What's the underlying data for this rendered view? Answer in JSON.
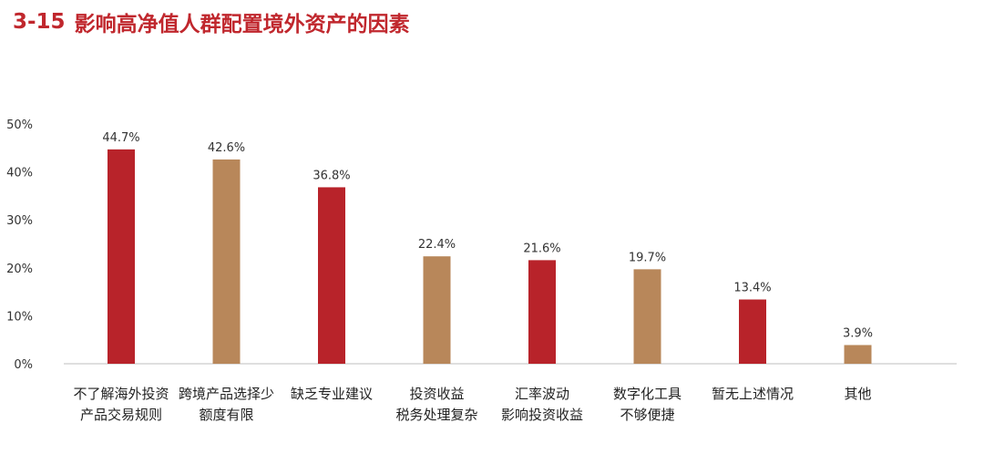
{
  "header": {
    "number": "3-15",
    "title": "影响高净值人群配置境外资产的因素"
  },
  "colors": {
    "red": "#b8232a",
    "tan": "#b8875a",
    "title": "#c0272d",
    "axis": "#bfbfbf",
    "text": "#333333"
  },
  "chart_data": {
    "type": "bar",
    "categories": [
      [
        "不了解海外投资",
        "产品交易规则"
      ],
      [
        "跨境产品选择少",
        "额度有限"
      ],
      [
        "缺乏专业建议"
      ],
      [
        "投资收益",
        "税务处理复杂"
      ],
      [
        "汇率波动",
        "影响投资收益"
      ],
      [
        "数字化工具",
        "不够便捷"
      ],
      [
        "暂无上述情况"
      ],
      [
        "其他"
      ]
    ],
    "values": [
      44.7,
      42.6,
      36.8,
      22.4,
      21.6,
      19.7,
      13.4,
      3.9
    ],
    "value_labels": [
      "44.7%",
      "42.6%",
      "36.8%",
      "22.4%",
      "21.6%",
      "19.7%",
      "13.4%",
      "3.9%"
    ],
    "bar_colors": [
      "red",
      "tan",
      "red",
      "tan",
      "red",
      "tan",
      "red",
      "tan"
    ],
    "ylim": [
      0,
      50
    ],
    "yticks": [
      0,
      10,
      20,
      30,
      40,
      50
    ],
    "ytick_labels": [
      "0%",
      "10%",
      "20%",
      "30%",
      "40%",
      "50%"
    ],
    "grid": false,
    "legend": "none"
  }
}
